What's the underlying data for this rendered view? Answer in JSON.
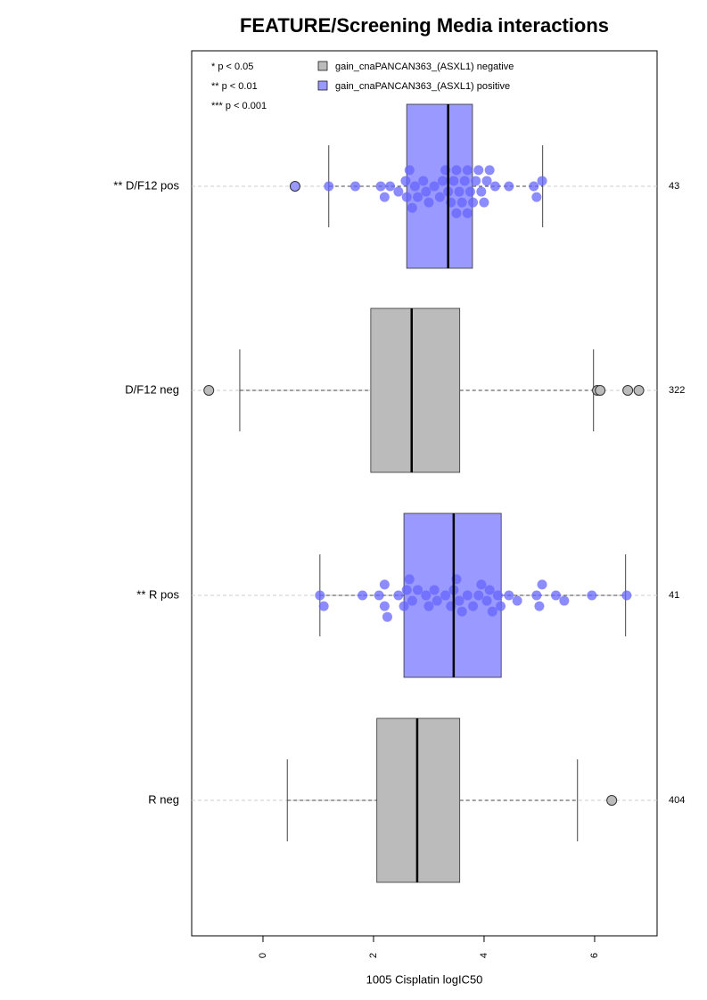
{
  "chart_data": {
    "type": "boxplot",
    "title": "FEATURE/Screening Media interactions",
    "x_label": "1005 Cisplatin logIC50",
    "xlim": [
      -1.29,
      7.13
    ],
    "xticks": [
      0,
      2,
      4,
      6
    ],
    "categories": [
      "** D/F12 pos",
      "D/F12 neg",
      "** R pos",
      "R neg"
    ],
    "counts": [
      43,
      322,
      41,
      404
    ],
    "notes": [
      "* p < 0.05",
      "** p < 0.01",
      "*** p < 0.001"
    ],
    "series": [
      {
        "name": "gain_cnaPANCAN363_(ASXL1) negative",
        "color": "#bbbbbb"
      },
      {
        "name": "gain_cnaPANCAN363_(ASXL1) positive",
        "color": "#9999ff"
      }
    ],
    "boxes": [
      {
        "color": "#9999ff",
        "point_color": "#6666ff",
        "whisker_low": 1.19,
        "q1": 2.6,
        "median": 3.35,
        "q3": 3.79,
        "whisker_high": 5.06,
        "outliers": [
          0.58
        ],
        "points": [
          1.19,
          1.67,
          2.13,
          2.2,
          2.3,
          2.45,
          2.58,
          2.6,
          2.65,
          2.7,
          2.75,
          2.8,
          2.9,
          3.0,
          3.1,
          3.2,
          3.3,
          3.35,
          3.4,
          3.45,
          3.5,
          3.5,
          3.55,
          3.6,
          3.65,
          3.7,
          3.7,
          3.75,
          3.8,
          3.85,
          3.9,
          3.95,
          4.0,
          4.05,
          4.1,
          4.2,
          4.45,
          4.9,
          4.95,
          5.05,
          3.25,
          2.95
        ]
      },
      {
        "color": "#bbbbbb",
        "point_color": "#aaaaaa",
        "whisker_low": -0.42,
        "q1": 1.95,
        "median": 2.69,
        "q3": 3.56,
        "whisker_high": 5.98,
        "outliers": [
          -0.98,
          6.05,
          6.1,
          6.6,
          6.8
        ],
        "points": []
      },
      {
        "color": "#9999ff",
        "point_color": "#6666ff",
        "whisker_low": 1.03,
        "q1": 2.55,
        "median": 3.45,
        "q3": 4.31,
        "whisker_high": 6.56,
        "outliers": [],
        "points": [
          1.03,
          1.1,
          1.8,
          2.1,
          2.2,
          2.2,
          2.25,
          2.45,
          2.55,
          2.6,
          2.65,
          2.7,
          2.8,
          2.95,
          3.0,
          3.1,
          3.15,
          3.3,
          3.4,
          3.45,
          3.5,
          3.55,
          3.6,
          3.7,
          3.8,
          3.9,
          3.95,
          4.05,
          4.1,
          4.15,
          4.25,
          4.3,
          4.45,
          4.6,
          4.95,
          5.0,
          5.05,
          5.3,
          5.45,
          5.95,
          6.58
        ]
      },
      {
        "color": "#bbbbbb",
        "point_color": "#aaaaaa",
        "whisker_low": 0.44,
        "q1": 2.06,
        "median": 2.79,
        "q3": 3.56,
        "whisker_high": 5.69,
        "outliers": [
          6.31
        ],
        "points": []
      }
    ]
  }
}
